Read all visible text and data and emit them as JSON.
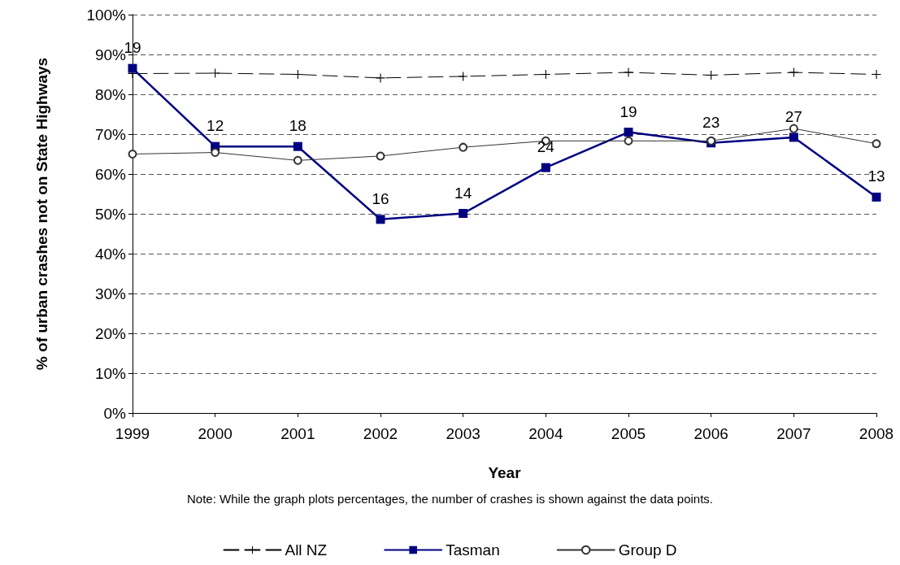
{
  "chart_data": {
    "type": "line",
    "xlabel": "Year",
    "ylabel": "% of urban crashes not on State Highways",
    "categories": [
      "1999",
      "2000",
      "2001",
      "2002",
      "2003",
      "2004",
      "2005",
      "2006",
      "2007",
      "2008"
    ],
    "series": [
      {
        "name": "All NZ",
        "color": "#000000",
        "marker": "cross",
        "line_style": "dashed",
        "values": [
          85.2,
          85.3,
          85.0,
          84.1,
          84.5,
          85.0,
          85.5,
          84.8,
          85.5,
          85.0
        ]
      },
      {
        "name": "Tasman",
        "color": "#000080",
        "marker": "square",
        "line_style": "solid",
        "values": [
          86.5,
          66.9,
          66.9,
          48.6,
          50.1,
          61.6,
          70.5,
          67.8,
          69.2,
          54.2
        ]
      },
      {
        "name": "Group D",
        "color": "#333333",
        "marker": "circle",
        "line_style": "solid",
        "values": [
          65.0,
          65.4,
          63.4,
          64.5,
          66.7,
          68.3,
          68.3,
          68.3,
          71.4,
          67.6
        ]
      }
    ],
    "ylim": [
      0,
      100
    ],
    "yticks": [
      {
        "value": 0,
        "label": "0%"
      },
      {
        "value": 10,
        "label": "10%"
      },
      {
        "value": 20,
        "label": "20%"
      },
      {
        "value": 30,
        "label": "30%"
      },
      {
        "value": 40,
        "label": "40%"
      },
      {
        "value": 50,
        "label": "50%"
      },
      {
        "value": 60,
        "label": "60%"
      },
      {
        "value": 70,
        "label": "70%"
      },
      {
        "value": 80,
        "label": "80%"
      },
      {
        "value": 90,
        "label": "90%"
      },
      {
        "value": 100,
        "label": "100%"
      }
    ],
    "grid": "y",
    "legend": "bottom",
    "annotations": [
      {
        "text": "19",
        "x": "1999",
        "y": 86.5
      },
      {
        "text": "12",
        "x": "2000",
        "y": 66.9
      },
      {
        "text": "18",
        "x": "2001",
        "y": 66.9
      },
      {
        "text": "16",
        "x": "2002",
        "y": 48.6
      },
      {
        "text": "14",
        "x": "2003",
        "y": 50.1
      },
      {
        "text": "24",
        "x": "2004",
        "y": 61.6
      },
      {
        "text": "19",
        "x": "2005",
        "y": 70.5
      },
      {
        "text": "23",
        "x": "2006",
        "y": 67.8
      },
      {
        "text": "27",
        "x": "2007",
        "y": 69.2
      },
      {
        "text": "13",
        "x": "2008",
        "y": 54.2
      },
      "Note: While the graph plots percentages, the number of crashes is shown against the data points."
    ]
  }
}
